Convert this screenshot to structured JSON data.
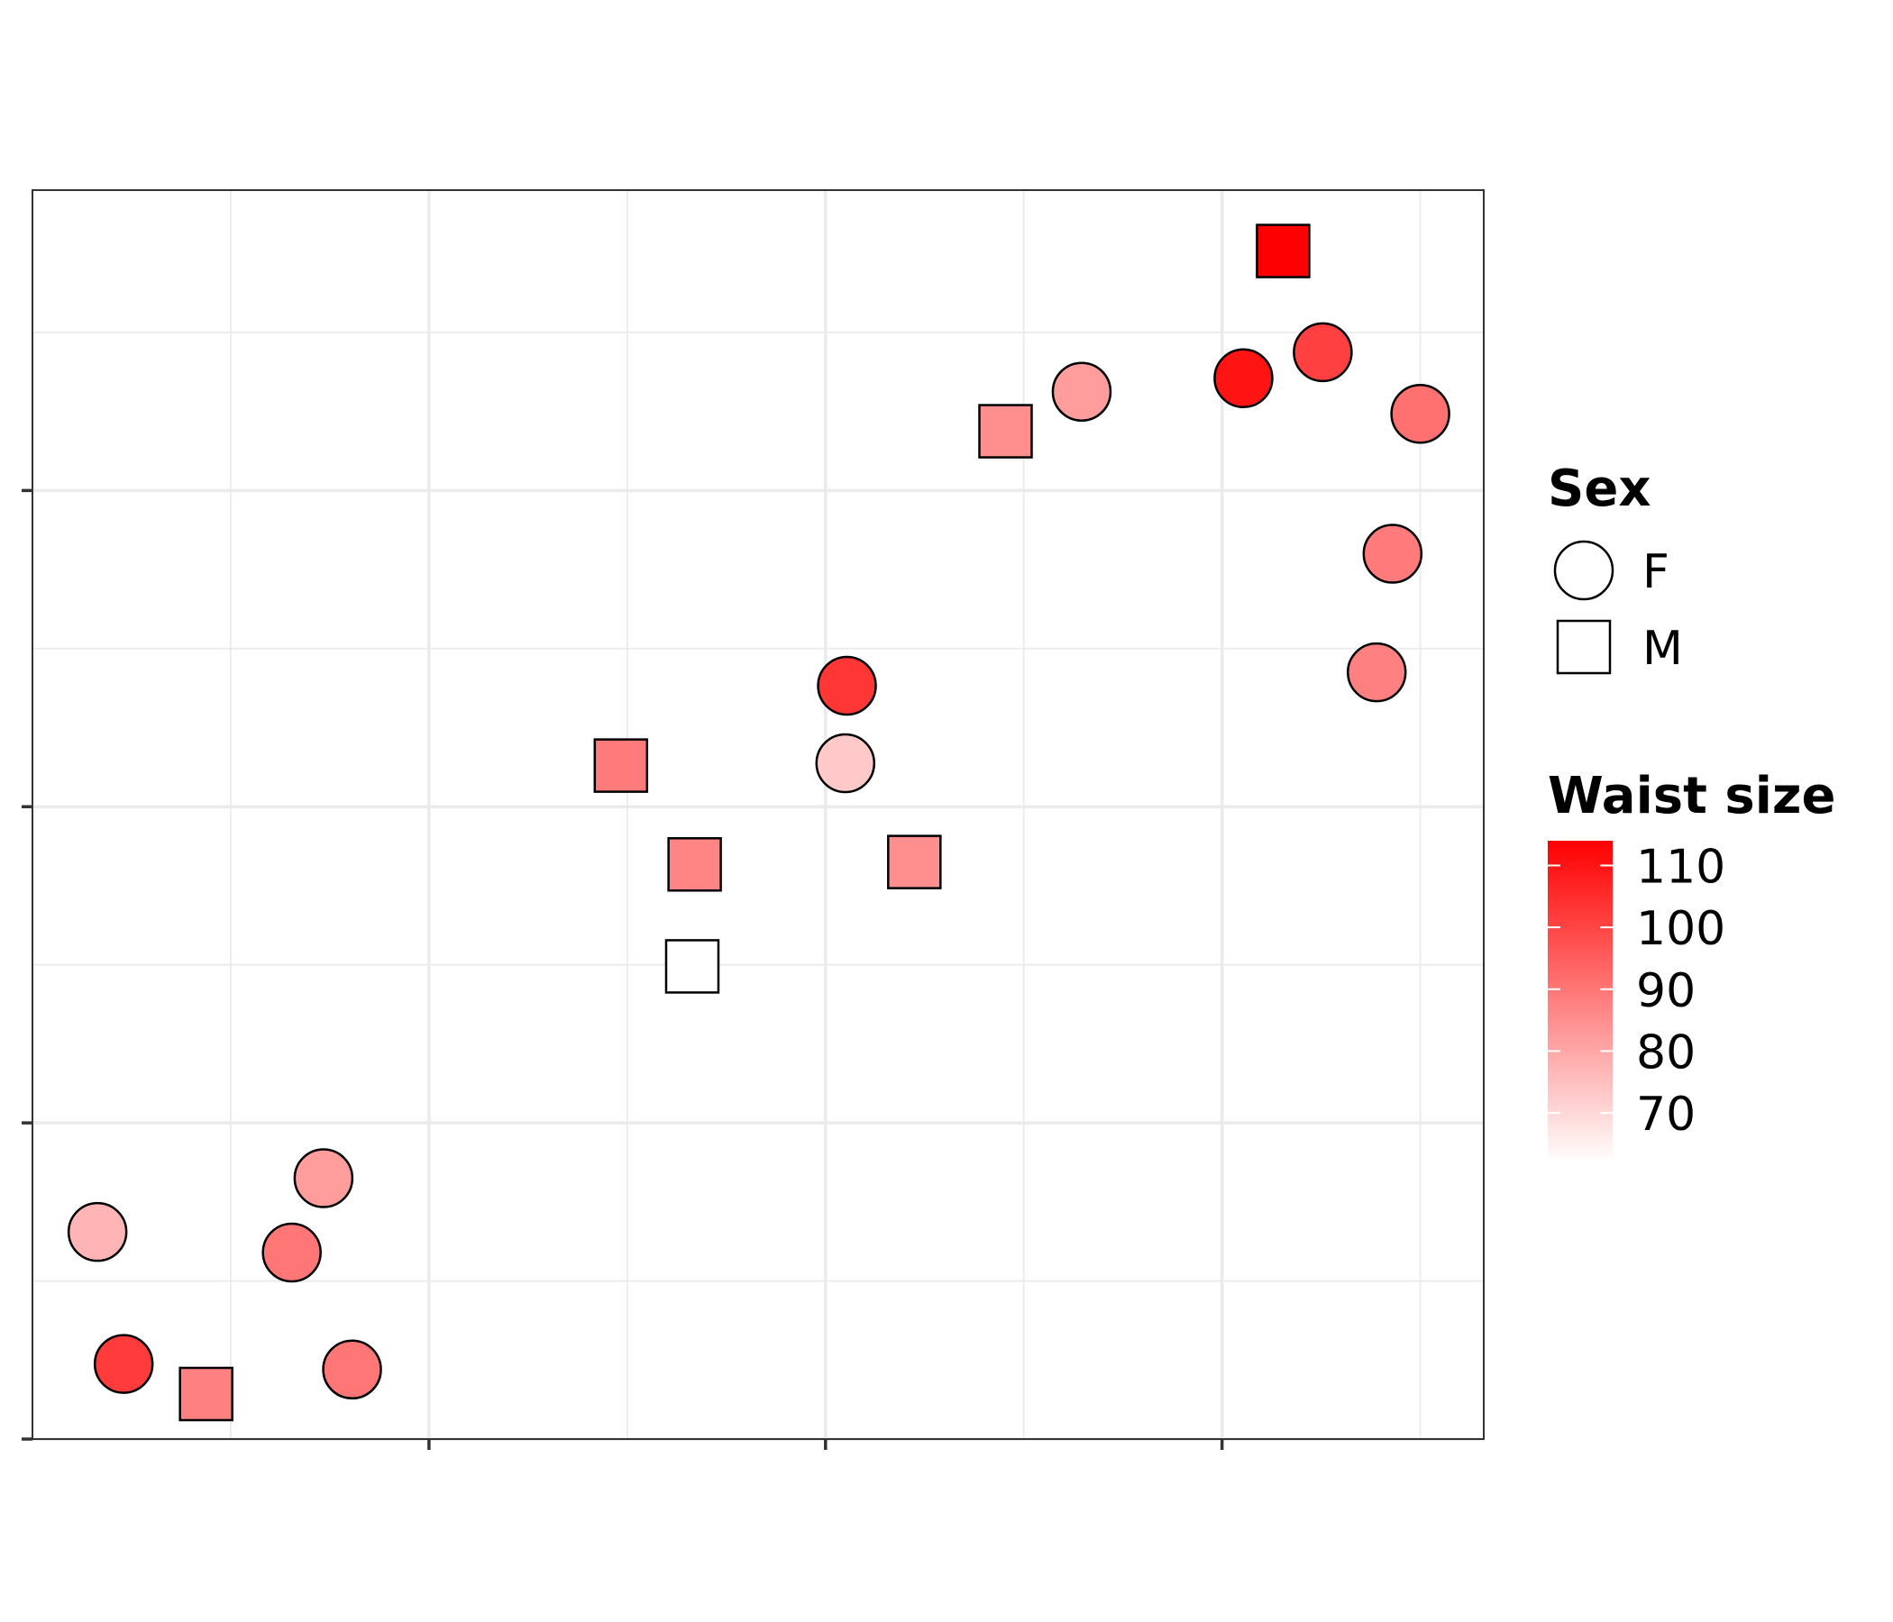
{
  "chart_data": {
    "type": "scatter",
    "xlim": [
      0,
      18.3
    ],
    "ylim": [
      0,
      15.8
    ],
    "x_major_ticks": [
      5,
      10,
      15
    ],
    "x_minor_ticks": [
      2.5,
      7.5,
      12.5,
      17.5
    ],
    "y_major_ticks": [
      0,
      4,
      8,
      12
    ],
    "y_minor_ticks": [
      2,
      6,
      10,
      14
    ],
    "grid": true,
    "tick_labels_shown": false,
    "legend_position": "right",
    "color_scale": {
      "title": "Waist size",
      "low_value": 62,
      "high_value": 114,
      "low_color": "#ffffff",
      "high_color": "#ff0000",
      "breaks": [
        110,
        100,
        90,
        80,
        70
      ]
    },
    "shape_legend": {
      "title": "Sex",
      "entries": [
        {
          "label": "F",
          "shape": "circle"
        },
        {
          "label": "M",
          "shape": "square"
        }
      ]
    },
    "points": [
      {
        "x": 0.82,
        "y": 2.62,
        "waist": 77,
        "sex": "F"
      },
      {
        "x": 1.15,
        "y": 0.95,
        "waist": 102,
        "sex": "F"
      },
      {
        "x": 2.19,
        "y": 0.57,
        "waist": 88,
        "sex": "M"
      },
      {
        "x": 3.27,
        "y": 2.36,
        "waist": 90,
        "sex": "F"
      },
      {
        "x": 3.67,
        "y": 3.3,
        "waist": 82,
        "sex": "F"
      },
      {
        "x": 4.03,
        "y": 0.88,
        "waist": 90,
        "sex": "F"
      },
      {
        "x": 7.42,
        "y": 8.52,
        "waist": 89,
        "sex": "M"
      },
      {
        "x": 8.35,
        "y": 7.27,
        "waist": 87,
        "sex": "M"
      },
      {
        "x": 8.32,
        "y": 5.98,
        "waist": 62,
        "sex": "M"
      },
      {
        "x": 10.27,
        "y": 9.53,
        "waist": 103,
        "sex": "F"
      },
      {
        "x": 10.25,
        "y": 8.55,
        "waist": 73,
        "sex": "F"
      },
      {
        "x": 11.12,
        "y": 7.3,
        "waist": 85,
        "sex": "M"
      },
      {
        "x": 12.27,
        "y": 12.75,
        "waist": 85,
        "sex": "M"
      },
      {
        "x": 13.23,
        "y": 13.25,
        "waist": 82,
        "sex": "F"
      },
      {
        "x": 15.27,
        "y": 13.42,
        "waist": 110,
        "sex": "F"
      },
      {
        "x": 15.77,
        "y": 15.03,
        "waist": 114,
        "sex": "M"
      },
      {
        "x": 16.27,
        "y": 13.75,
        "waist": 101,
        "sex": "F"
      },
      {
        "x": 17.5,
        "y": 12.97,
        "waist": 91,
        "sex": "F"
      },
      {
        "x": 17.15,
        "y": 11.2,
        "waist": 89,
        "sex": "F"
      },
      {
        "x": 16.95,
        "y": 9.7,
        "waist": 88,
        "sex": "F"
      }
    ]
  }
}
